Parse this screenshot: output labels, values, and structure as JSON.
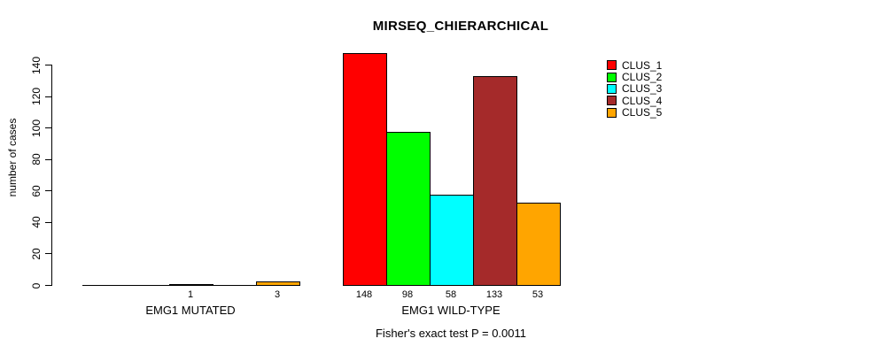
{
  "chart_data": {
    "type": "bar",
    "title": "MIRSEQ_CHIERARCHICAL",
    "xlabel": "",
    "ylabel": "number of cases",
    "annotation": "Fisher's exact test P = 0.0011",
    "ylim": [
      0,
      140
    ],
    "yticks": [
      0,
      20,
      40,
      60,
      80,
      100,
      120,
      140
    ],
    "grid": false,
    "legend_position": "top-right",
    "series": [
      {
        "name": "CLUS_1",
        "color": "#FF0000",
        "values": [
          0,
          148
        ]
      },
      {
        "name": "CLUS_2",
        "color": "#00FF00",
        "values": [
          0,
          98
        ]
      },
      {
        "name": "CLUS_3",
        "color": "#00FFFF",
        "values": [
          1,
          58
        ]
      },
      {
        "name": "CLUS_4",
        "color": "#A52A2A",
        "values": [
          0,
          133
        ]
      },
      {
        "name": "CLUS_5",
        "color": "#FFA500",
        "values": [
          3,
          53
        ]
      }
    ],
    "groups": [
      {
        "label": "EMG1 MUTATED",
        "values": [
          0,
          0,
          1,
          0,
          3
        ],
        "bar_labels": [
          "",
          "",
          "1",
          "",
          "3"
        ]
      },
      {
        "label": "EMG1 WILD-TYPE",
        "values": [
          148,
          98,
          58,
          133,
          53
        ],
        "bar_labels": [
          "148",
          "98",
          "58",
          "133",
          "53"
        ]
      }
    ],
    "colors": [
      "#FF0000",
      "#00FF00",
      "#00FFFF",
      "#A52A2A",
      "#FFA500"
    ]
  },
  "legend": {
    "entries": [
      {
        "label": "CLUS_1",
        "color": "#FF0000"
      },
      {
        "label": "CLUS_2",
        "color": "#00FF00"
      },
      {
        "label": "CLUS_3",
        "color": "#00FFFF"
      },
      {
        "label": "CLUS_4",
        "color": "#A52A2A"
      },
      {
        "label": "CLUS_5",
        "color": "#FFA500"
      }
    ]
  }
}
